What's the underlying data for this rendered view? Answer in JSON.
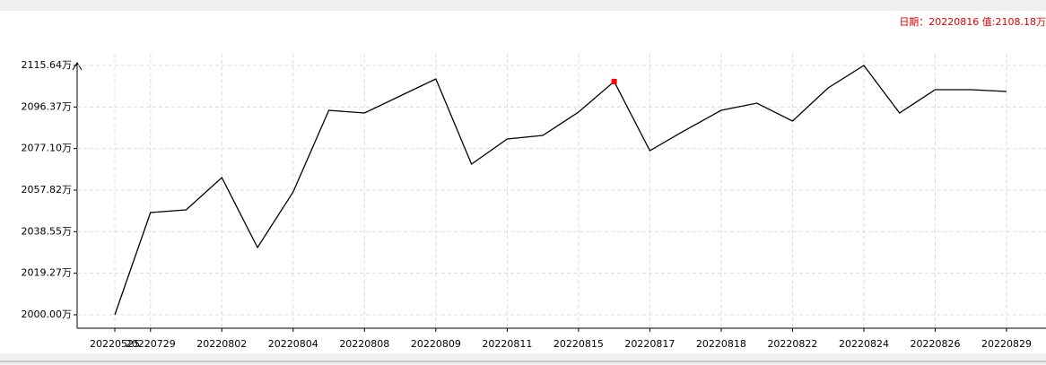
{
  "chart_data": {
    "type": "line",
    "tooltip": "日期：20220816  值:2108.18万",
    "categories": [
      "20220525",
      "20220729",
      null,
      "20220802",
      null,
      "20220804",
      null,
      "20220808",
      null,
      "20220809",
      null,
      "20220811",
      null,
      "20220815",
      null,
      "20220817",
      null,
      "20220818",
      null,
      "20220822",
      null,
      "20220824",
      null,
      "20220826",
      null,
      "20220829",
      null
    ],
    "series": [
      {
        "color": "#000000",
        "values": [
          2000.0,
          2047.42,
          2048.67,
          2063.64,
          2031.2,
          2056.99,
          2094.84,
          2093.59,
          2101.5,
          2109.4,
          2069.88,
          2081.53,
          2083.19,
          2094.01,
          2108.18,
          2076.12,
          2085.69,
          2094.84,
          2098.17,
          2089.85,
          2105.24,
          2115.64,
          2093.59,
          2104.41,
          2104.41,
          2103.58,
          null
        ]
      }
    ],
    "highlight_index": 14,
    "highlight_color": "#ff0000",
    "ylim": [
      2000.0,
      2115.64
    ],
    "yticks": [
      {
        "value": 2000.0,
        "label": "2000.00万"
      },
      {
        "value": 2019.27,
        "label": "2019.27万"
      },
      {
        "value": 2038.55,
        "label": "2038.55万"
      },
      {
        "value": 2057.82,
        "label": "2057.82万"
      },
      {
        "value": 2077.1,
        "label": "2077.10万"
      },
      {
        "value": 2096.37,
        "label": "2096.37万"
      },
      {
        "value": 2115.64,
        "label": "2115.64万"
      }
    ],
    "grid": true
  }
}
